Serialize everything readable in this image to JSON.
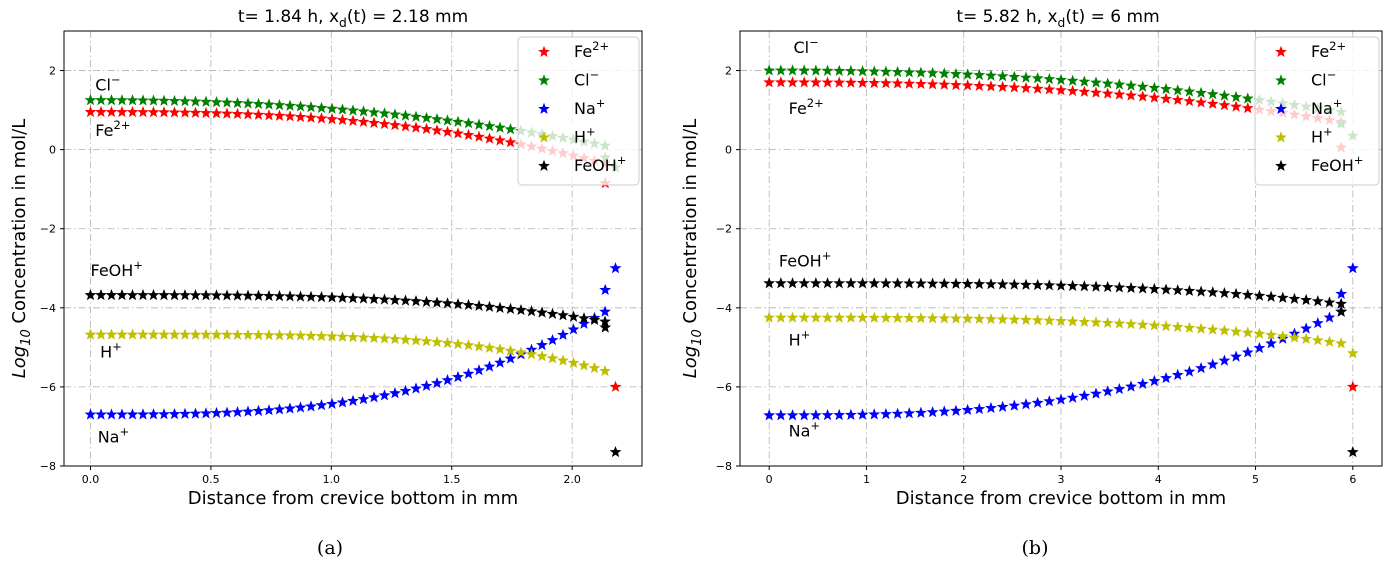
{
  "chart_data": [
    {
      "type": "scatter",
      "panel_label": "(a)",
      "title_prefix": "t= 1.84 h, x",
      "title_sub": "d",
      "title_suffix": "(t) = 2.18 mm",
      "xlabel": "Distance from crevice bottom in mm",
      "ylabel_main": "Log",
      "ylabel_sub": "10",
      "ylabel_rest": " Concentration in mol/L",
      "xlim": [
        -0.11,
        2.29
      ],
      "ylim": [
        -8,
        3
      ],
      "xticks": [
        0.0,
        0.5,
        1.0,
        1.5,
        2.0
      ],
      "xtick_labels": [
        "0.0",
        "0.5",
        "1.0",
        "1.5",
        "2.0"
      ],
      "yticks": [
        -8,
        -6,
        -4,
        -2,
        0,
        2
      ],
      "ytick_labels": [
        "−8",
        "−6",
        "−4",
        "−2",
        "0",
        "2"
      ],
      "grid": true,
      "legend_position": "top-right",
      "n_points": 50,
      "x_end": 2.18,
      "annotations": [
        {
          "base": "Cl",
          "sup": "−",
          "x": 0.02,
          "y": 1.5
        },
        {
          "base": "Fe",
          "sup": "2+",
          "x": 0.02,
          "y": 0.35
        },
        {
          "base": "FeOH",
          "sup": "+",
          "x": 0.0,
          "y": -3.2
        },
        {
          "base": "H",
          "sup": "+",
          "x": 0.04,
          "y": -5.25
        },
        {
          "base": "Na",
          "sup": "+",
          "x": 0.03,
          "y": -7.4
        }
      ],
      "series": [
        {
          "name": "Fe",
          "sup": "2+",
          "color": "#ff0000",
          "start": 0.95,
          "end": -0.35,
          "power": 2.6,
          "final": -6.0,
          "prev": -0.85
        },
        {
          "name": "Cl",
          "sup": "−",
          "color": "#008000",
          "start": 1.25,
          "end": 0.1,
          "power": 2.2,
          "final": -0.45,
          "prev": -0.2
        },
        {
          "name": "Na",
          "sup": "+",
          "color": "#0000ff",
          "start": -6.7,
          "end": -4.1,
          "power": 3.0,
          "final": -3.0,
          "prev": -3.55
        },
        {
          "name": "H",
          "sup": "+",
          "color": "#bfbf00",
          "start": -4.68,
          "end": -5.6,
          "power": 4.0,
          "final": null,
          "prev": null
        },
        {
          "name": "FeOH",
          "sup": "+",
          "color": "#000000",
          "start": -3.68,
          "end": -4.35,
          "power": 3.2,
          "final": -7.65,
          "prev": -4.5
        }
      ]
    },
    {
      "type": "scatter",
      "panel_label": "(b)",
      "title_prefix": "t= 5.82 h, x",
      "title_sub": "d",
      "title_suffix": "(t) = 6 mm",
      "xlabel": "Distance from crevice bottom in mm",
      "ylabel_main": "Log",
      "ylabel_sub": "10",
      "ylabel_rest": " Concentration in mol/L",
      "xlim": [
        -0.3,
        6.3
      ],
      "ylim": [
        -8,
        3
      ],
      "xticks": [
        0,
        1,
        2,
        3,
        4,
        5,
        6
      ],
      "xtick_labels": [
        "0",
        "1",
        "2",
        "3",
        "4",
        "5",
        "6"
      ],
      "yticks": [
        -8,
        -6,
        -4,
        -2,
        0,
        2
      ],
      "ytick_labels": [
        "−8",
        "−6",
        "−4",
        "−2",
        "0",
        "2"
      ],
      "grid": true,
      "legend_position": "top-right",
      "n_points": 50,
      "x_end": 6.0,
      "annotations": [
        {
          "base": "Cl",
          "sup": "−",
          "x": 0.25,
          "y": 2.45
        },
        {
          "base": "Fe",
          "sup": "2+",
          "x": 0.2,
          "y": 0.9
        },
        {
          "base": "FeOH",
          "sup": "+",
          "x": 0.1,
          "y": -2.95
        },
        {
          "base": "H",
          "sup": "+",
          "x": 0.2,
          "y": -4.95
        },
        {
          "base": "Na",
          "sup": "+",
          "x": 0.2,
          "y": -7.25
        }
      ],
      "series": [
        {
          "name": "Fe",
          "sup": "2+",
          "color": "#ff0000",
          "start": 1.7,
          "end": 0.7,
          "power": 2.4,
          "final": -6.0,
          "prev": 0.05
        },
        {
          "name": "Cl",
          "sup": "−",
          "color": "#008000",
          "start": 2.0,
          "end": 0.95,
          "power": 2.2,
          "final": 0.35,
          "prev": 0.65
        },
        {
          "name": "Na",
          "sup": "+",
          "color": "#0000ff",
          "start": -6.72,
          "end": -4.1,
          "power": 2.8,
          "final": -3.0,
          "prev": -3.65
        },
        {
          "name": "H",
          "sup": "+",
          "color": "#bfbf00",
          "start": -4.25,
          "end": -4.9,
          "power": 3.0,
          "final": -5.15,
          "prev": null
        },
        {
          "name": "FeOH",
          "sup": "+",
          "color": "#000000",
          "start": -3.38,
          "end": -3.9,
          "power": 3.2,
          "final": -7.65,
          "prev": -4.1
        }
      ]
    }
  ]
}
